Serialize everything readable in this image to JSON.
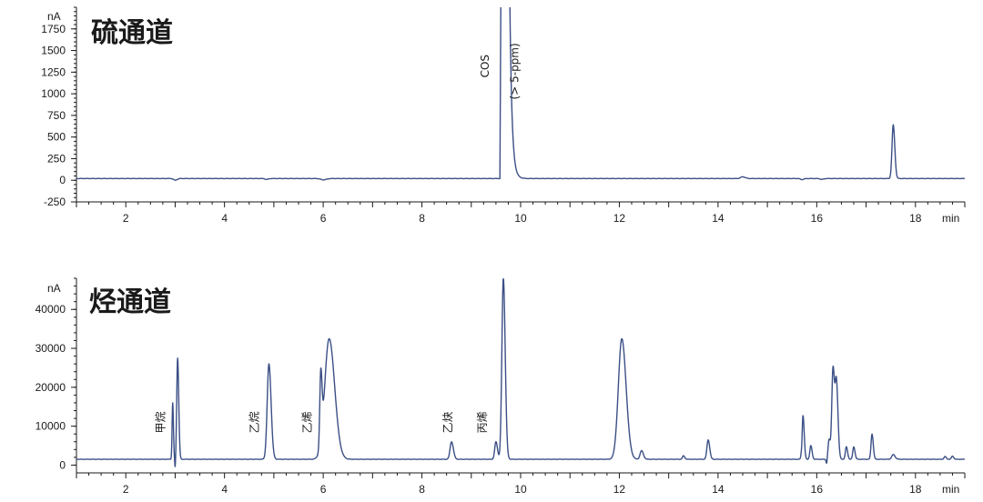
{
  "chart_data": [
    {
      "type": "line",
      "title": "硫通道",
      "x_unit": "min",
      "y_unit": "nA",
      "xlim": [
        1,
        19
      ],
      "ylim": [
        -250,
        2000
      ],
      "x_ticks": [
        2,
        4,
        6,
        8,
        10,
        12,
        14,
        16,
        18
      ],
      "y_ticks": [
        -250,
        0,
        250,
        500,
        750,
        1000,
        1250,
        1500,
        1750
      ],
      "baseline": 20,
      "series": [
        {
          "color": "#3b4f86",
          "peaks": [
            {
              "t": 3.0,
              "h": -20,
              "w": 0.03
            },
            {
              "t": 4.85,
              "h": -10,
              "w": 0.03
            },
            {
              "t": 6.0,
              "h": -15,
              "w": 0.05
            },
            {
              "t": 14.5,
              "h": 20,
              "w": 0.04
            },
            {
              "t": 15.7,
              "h": -12,
              "w": 0.03
            },
            {
              "t": 16.1,
              "h": -10,
              "w": 0.03
            },
            {
              "t": 17.55,
              "h": 620,
              "w": 0.025
            }
          ],
          "cos_peak": {
            "start": 9.6,
            "end": 9.78,
            "top": 2150
          }
        }
      ],
      "annotations": [
        {
          "text": "COS",
          "x": 9.35,
          "y": 1320
        },
        {
          "text": "(> 5-ppm)",
          "x": 9.95,
          "y": 1260
        }
      ]
    },
    {
      "type": "line",
      "title": "烃通道",
      "x_unit": "min",
      "y_unit": "nA",
      "xlim": [
        1,
        19
      ],
      "ylim": [
        -2000,
        48000
      ],
      "x_ticks": [
        2,
        4,
        6,
        8,
        10,
        12,
        14,
        16,
        18
      ],
      "y_ticks": [
        0,
        10000,
        20000,
        30000,
        40000
      ],
      "baseline": 1500,
      "series": [
        {
          "color": "#3b4f86",
          "peaks": [
            {
              "t": 2.95,
              "h": 14500,
              "w": 0.012
            },
            {
              "t": 3.05,
              "h": 26000,
              "w": 0.018
            },
            {
              "t": 4.9,
              "h": 24500,
              "w": 0.035
            },
            {
              "t": 5.95,
              "h": 18000,
              "w": 0.02
            },
            {
              "t": 6.12,
              "h": 31000,
              "w": 0.09
            },
            {
              "t": 8.6,
              "h": 4500,
              "w": 0.03
            },
            {
              "t": 9.5,
              "h": 4500,
              "w": 0.025
            },
            {
              "t": 9.65,
              "h": 46500,
              "w": 0.03
            },
            {
              "t": 12.05,
              "h": 31000,
              "w": 0.07
            },
            {
              "t": 12.45,
              "h": 2200,
              "w": 0.03
            },
            {
              "t": 13.3,
              "h": 900,
              "w": 0.02
            },
            {
              "t": 13.8,
              "h": 5000,
              "w": 0.025
            },
            {
              "t": 15.72,
              "h": 11500,
              "w": 0.02
            },
            {
              "t": 15.88,
              "h": 3500,
              "w": 0.02
            },
            {
              "t": 16.25,
              "h": 5000,
              "w": 0.02
            },
            {
              "t": 16.33,
              "h": 23500,
              "w": 0.025
            },
            {
              "t": 16.4,
              "h": 19000,
              "w": 0.025
            },
            {
              "t": 16.6,
              "h": 3200,
              "w": 0.02
            },
            {
              "t": 16.75,
              "h": 3200,
              "w": 0.02
            },
            {
              "t": 17.12,
              "h": 6500,
              "w": 0.02
            },
            {
              "t": 17.55,
              "h": 1200,
              "w": 0.03
            },
            {
              "t": 18.6,
              "h": 700,
              "w": 0.02
            },
            {
              "t": 18.75,
              "h": 800,
              "w": 0.02
            }
          ],
          "dips": [
            {
              "t": 3.0,
              "h": -2500,
              "w": 0.008
            },
            {
              "t": 15.7,
              "h": -2000,
              "w": 0.01
            },
            {
              "t": 16.2,
              "h": -1200,
              "w": 0.01
            }
          ]
        }
      ],
      "annotations": [
        {
          "text": "甲烷",
          "x": 2.78,
          "y": 11000
        },
        {
          "text": "乙烷",
          "x": 4.68,
          "y": 11000
        },
        {
          "text": "乙烯",
          "x": 5.75,
          "y": 11000
        },
        {
          "text": "乙炔",
          "x": 8.6,
          "y": 11000
        },
        {
          "text": "丙烯",
          "x": 9.3,
          "y": 11000
        }
      ]
    }
  ]
}
